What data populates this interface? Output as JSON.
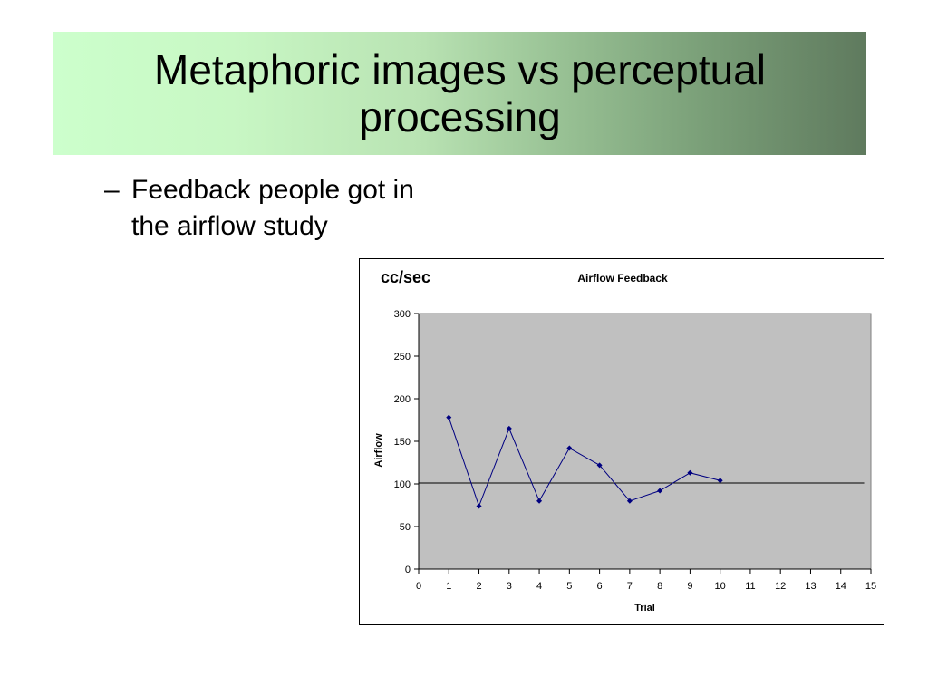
{
  "slide": {
    "title": "Metaphoric images vs perceptual processing",
    "bullet": {
      "marker": "–",
      "text": "Feedback people got in the airflow study"
    }
  },
  "colors": {
    "banner_start": "#ccffcc",
    "banner_end": "#5f7a5e",
    "plot_background": "#c0c0c0",
    "series_line": "#000080",
    "reference_line": "#000000"
  },
  "chart_data": {
    "type": "line",
    "title": "Airflow Feedback",
    "unit_label": "cc/sec",
    "xlabel": "Trial",
    "ylabel": "Airflow",
    "xlim": [
      0,
      15
    ],
    "ylim": [
      0,
      300
    ],
    "xticks": [
      0,
      1,
      2,
      3,
      4,
      5,
      6,
      7,
      8,
      9,
      10,
      11,
      12,
      13,
      14,
      15
    ],
    "yticks": [
      0,
      50,
      100,
      150,
      200,
      250,
      300
    ],
    "grid": false,
    "series": [
      {
        "x": [
          1,
          2,
          3,
          4,
          5,
          6,
          7,
          8,
          9,
          10
        ],
        "y": [
          178,
          74,
          165,
          80,
          142,
          122,
          80,
          92,
          113,
          104
        ]
      }
    ],
    "reference_line": {
      "y": 101
    }
  }
}
